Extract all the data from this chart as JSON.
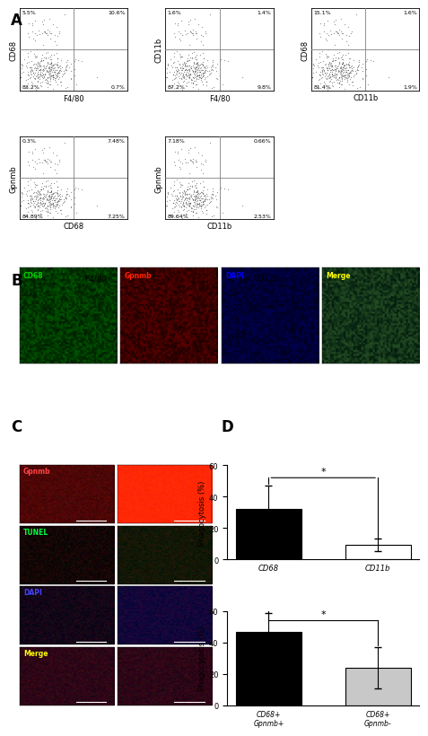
{
  "panel_A_label": "A",
  "panel_B_label": "B",
  "panel_C_label": "C",
  "panel_D_label": "D",
  "flow_plots_top": [
    {
      "xlabel": "F4/80",
      "ylabel": "CD68",
      "quadrants": [
        "5.5%",
        "10.6%",
        "83.2%",
        "0.7%"
      ]
    },
    {
      "xlabel": "F4/80",
      "ylabel": "CD11b",
      "quadrants": [
        "1.6%",
        "1.4%",
        "87.2%",
        "9.8%"
      ]
    },
    {
      "xlabel": "CD11b",
      "ylabel": "CD68",
      "quadrants": [
        "15.1%",
        "1.6%",
        "81.4%",
        "1.9%"
      ]
    }
  ],
  "flow_plots_bottom": [
    {
      "xlabel": "CD68",
      "ylabel": "Gpnmb",
      "quadrants": [
        "0.3%",
        "7.48%",
        "84.89%",
        "7.25%"
      ]
    },
    {
      "xlabel": "CD11b",
      "ylabel": "Gpnmb",
      "quadrants": [
        "7.18%",
        "0.66%",
        "89.64%",
        "2.53%"
      ]
    }
  ],
  "bar_chart1": {
    "categories": [
      "CD68",
      "CD11b"
    ],
    "values": [
      32,
      9
    ],
    "errors": [
      15,
      4
    ],
    "colors": [
      "#000000",
      "#ffffff"
    ],
    "edgecolors": [
      "#000000",
      "#000000"
    ],
    "ylabel": "Phagocytosis (%)",
    "ylim": [
      0,
      60
    ],
    "yticks": [
      0,
      20,
      40,
      60
    ],
    "significance": "*"
  },
  "bar_chart2": {
    "categories": [
      "CD68+\nGpnmb+",
      "CD68+\nGpnmb-"
    ],
    "values": [
      47,
      24
    ],
    "errors": [
      12,
      13
    ],
    "colors": [
      "#000000",
      "#c8c8c8"
    ],
    "edgecolors": [
      "#000000",
      "#000000"
    ],
    "ylabel": "Phagocytosis (%)",
    "ylim": [
      0,
      60
    ],
    "yticks": [
      0,
      20,
      40,
      60
    ],
    "significance": "*"
  },
  "microscopy_B_labels": [
    "CD68",
    "Gpnmb",
    "DAPI",
    "Merge"
  ],
  "microscopy_B_colors": [
    "#00cc00",
    "#ff2200",
    "#0000ff",
    "#ffff00"
  ],
  "microscopy_C_labels": [
    "Gpnmb",
    "TUNEL",
    "DAPI",
    "Merge"
  ],
  "microscopy_C_label_colors": [
    "#ff4444",
    "#00ff44",
    "#4444ff",
    "#ffff00"
  ]
}
